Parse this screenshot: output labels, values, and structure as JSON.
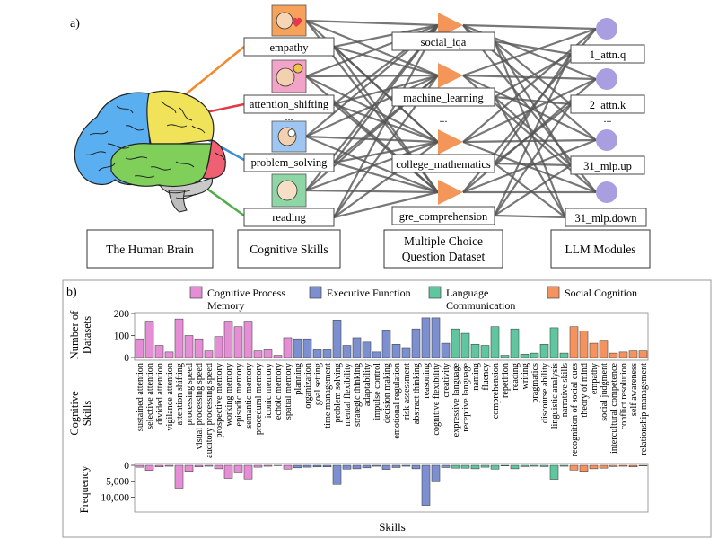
{
  "panel_a": {
    "label": "a)",
    "skills": [
      "empathy",
      "attention_shifting",
      "...",
      "problem_solving",
      "reading"
    ],
    "datasets": [
      "social_iqa",
      "machine_learning",
      "...",
      "college_mathematics",
      "gre_comprehension"
    ],
    "modules": [
      "1_attn.q",
      "2_attn.k",
      "...",
      "31_mlp.up",
      "31_mlp.down"
    ],
    "captions": {
      "brain": "The Human Brain",
      "skills": "Cognitive Skills",
      "dataset_line1": "Multiple Choice",
      "dataset_line2": "Question Dataset",
      "modules": "LLM Modules"
    },
    "colors": {
      "triangle": "#f4955a",
      "circle": "#a99ee0",
      "edge": "#555555",
      "lobe_frontal": "#5aaff0",
      "lobe_parietal": "#f0e35a",
      "lobe_temporal": "#7fcf5a",
      "lobe_occipital": "#ef6073"
    }
  },
  "panel_b": {
    "label": "b)",
    "legend": [
      {
        "label": "Cognitive Process",
        "sub": "Memory",
        "color": "#e58ed6"
      },
      {
        "label": "Executive Function",
        "sub": "",
        "color": "#7c8fd0"
      },
      {
        "label": "Language",
        "sub": "Communication",
        "color": "#5fc6a0"
      },
      {
        "label": "Social Cognition",
        "sub": "",
        "color": "#f4935f"
      }
    ],
    "ylabel_top": [
      "Number of",
      "Datasets"
    ],
    "ylabel_mid": [
      "Cognitive",
      "Skills"
    ],
    "ylabel_bottom": "Frequency",
    "xlabel": "Skills"
  },
  "chart_data": {
    "type": "bar",
    "categories": [
      "sustained attention",
      "selective attention",
      "divided attention",
      "vigilance attention",
      "attention shifting",
      "processing speed",
      "visual processing speed",
      "auditory processing speed",
      "prospective memory",
      "working memory",
      "episodic memory",
      "semantic memory",
      "procedural memory",
      "iconic memory",
      "echoic memory",
      "spatial memory",
      "planning",
      "organization",
      "goal setting",
      "time management",
      "problem solving",
      "mental flexibility",
      "strategic thinking",
      "adaptability",
      "impulse control",
      "decision making",
      "emotional regulation",
      "risk assessment",
      "abstract thinking",
      "reasoning",
      "cognitive flexibility",
      "creativity",
      "expressive language",
      "receptive language",
      "naming",
      "fluency",
      "comprehension",
      "repetition",
      "reading",
      "writing",
      "pragmatics",
      "discourse ability",
      "linguistic analysis",
      "narrative skills",
      "recognition of social cues",
      "theory of mind",
      "empathy",
      "social judgment",
      "intercultural competence",
      "conflict resolution",
      "self awareness",
      "relationship management"
    ],
    "groups": [
      0,
      0,
      0,
      0,
      0,
      0,
      0,
      0,
      0,
      0,
      0,
      0,
      0,
      0,
      0,
      0,
      1,
      1,
      1,
      1,
      1,
      1,
      1,
      1,
      1,
      1,
      1,
      1,
      1,
      1,
      1,
      1,
      2,
      2,
      2,
      2,
      2,
      2,
      2,
      2,
      2,
      2,
      2,
      2,
      3,
      3,
      3,
      3,
      3,
      3,
      3,
      3
    ],
    "series": [
      {
        "name": "Number of Datasets",
        "values": [
          85,
          165,
          55,
          25,
          175,
          100,
          85,
          30,
          95,
          165,
          140,
          165,
          30,
          35,
          10,
          90,
          85,
          85,
          35,
          35,
          170,
          55,
          90,
          70,
          25,
          125,
          60,
          45,
          130,
          180,
          180,
          65,
          130,
          110,
          60,
          55,
          140,
          10,
          130,
          15,
          20,
          60,
          135,
          20,
          140,
          120,
          65,
          75,
          20,
          25,
          30,
          30
        ],
        "ylim": [
          0,
          200
        ]
      },
      {
        "name": "Frequency",
        "values": [
          600,
          1600,
          500,
          300,
          7200,
          1900,
          500,
          300,
          1100,
          4100,
          2100,
          4300,
          600,
          300,
          100,
          1200,
          800,
          600,
          500,
          500,
          6000,
          1200,
          1100,
          800,
          300,
          1300,
          700,
          300,
          1100,
          12600,
          4900,
          700,
          900,
          900,
          1100,
          600,
          1200,
          200,
          1100,
          400,
          300,
          400,
          4400,
          300,
          1500,
          1900,
          1100,
          900,
          400,
          300,
          500,
          200
        ],
        "ylim": [
          0,
          13000
        ]
      }
    ],
    "top_ticks": [
      "200",
      "100",
      "0"
    ],
    "top_tick_values": [
      200,
      100,
      0
    ],
    "bottom_ticks": [
      "0",
      "5,000",
      "10,000"
    ],
    "bottom_tick_values": [
      0,
      5000,
      10000
    ]
  }
}
